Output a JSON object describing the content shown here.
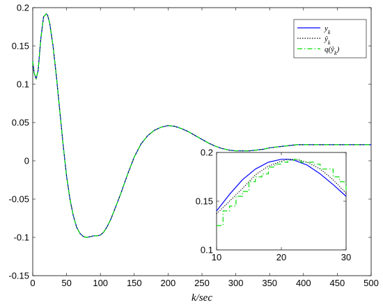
{
  "chart_data": [
    {
      "type": "line",
      "title": "",
      "xlabel": "k/sec",
      "ylabel": "",
      "xlim": [
        0,
        500
      ],
      "ylim": [
        -0.15,
        0.2
      ],
      "xticks": [
        0,
        50,
        100,
        150,
        200,
        250,
        300,
        350,
        400,
        450,
        500
      ],
      "xtick_labels": [
        "0",
        "50",
        "100",
        "150",
        "200",
        "250",
        "300",
        "350",
        "400",
        "450",
        "500"
      ],
      "yticks": [
        -0.15,
        -0.1,
        -0.05,
        0,
        0.05,
        0.1,
        0.15,
        0.2
      ],
      "ytick_labels": [
        "-0.15",
        "-0.1",
        "-0.05",
        "0",
        "0.05",
        "0.1",
        "0.15",
        "0.2"
      ],
      "grid": false,
      "legend_position": "top-right",
      "colors": {
        "y": "#0000ff",
        "y_est": "#000000",
        "q_y_est": "#00dd00"
      },
      "series": [
        {
          "name": "y_k",
          "style": "solid",
          "x": [
            0,
            2,
            5,
            8,
            12,
            16,
            20,
            22,
            25,
            30,
            35,
            40,
            45,
            50,
            55,
            60,
            65,
            70,
            75,
            80,
            85,
            90,
            95,
            100,
            105,
            110,
            115,
            120,
            130,
            140,
            150,
            160,
            170,
            180,
            190,
            200,
            210,
            220,
            230,
            240,
            250,
            260,
            270,
            280,
            290,
            300,
            310,
            320,
            330,
            340,
            350,
            360,
            370,
            380,
            390,
            400,
            420,
            440,
            460,
            480,
            500
          ],
          "y": [
            0.13,
            0.115,
            0.107,
            0.118,
            0.16,
            0.188,
            0.192,
            0.19,
            0.18,
            0.15,
            0.11,
            0.065,
            0.02,
            -0.02,
            -0.05,
            -0.072,
            -0.087,
            -0.095,
            -0.099,
            -0.1,
            -0.099,
            -0.098,
            -0.098,
            -0.097,
            -0.093,
            -0.086,
            -0.077,
            -0.066,
            -0.043,
            -0.018,
            0.005,
            0.022,
            0.033,
            0.04,
            0.044,
            0.046,
            0.045,
            0.042,
            0.038,
            0.033,
            0.028,
            0.023,
            0.019,
            0.016,
            0.014,
            0.013,
            0.013,
            0.013,
            0.014,
            0.015,
            0.017,
            0.018,
            0.019,
            0.02,
            0.021,
            0.021,
            0.021,
            0.021,
            0.021,
            0.021,
            0.021
          ]
        },
        {
          "name": "ŷ_k",
          "style": "dotted",
          "x": [
            0,
            2,
            5,
            8,
            12,
            16,
            20,
            22,
            25,
            30,
            35,
            40,
            45,
            50,
            55,
            60,
            65,
            70,
            75,
            80,
            85,
            90,
            95,
            100,
            105,
            110,
            115,
            120,
            130,
            140,
            150,
            160,
            170,
            180,
            190,
            200,
            210,
            220,
            230,
            240,
            250,
            260,
            270,
            280,
            290,
            300,
            310,
            320,
            330,
            340,
            350,
            360,
            370,
            380,
            390,
            400,
            420,
            440,
            460,
            480,
            500
          ],
          "y": [
            0.13,
            0.115,
            0.107,
            0.118,
            0.16,
            0.188,
            0.192,
            0.19,
            0.18,
            0.15,
            0.11,
            0.065,
            0.02,
            -0.02,
            -0.05,
            -0.072,
            -0.087,
            -0.095,
            -0.099,
            -0.1,
            -0.099,
            -0.098,
            -0.098,
            -0.097,
            -0.093,
            -0.086,
            -0.077,
            -0.066,
            -0.043,
            -0.018,
            0.005,
            0.022,
            0.033,
            0.04,
            0.044,
            0.046,
            0.045,
            0.042,
            0.038,
            0.033,
            0.028,
            0.023,
            0.019,
            0.016,
            0.014,
            0.013,
            0.013,
            0.013,
            0.014,
            0.015,
            0.017,
            0.018,
            0.019,
            0.02,
            0.021,
            0.021,
            0.021,
            0.021,
            0.021,
            0.021,
            0.021
          ]
        },
        {
          "name": "q(ŷ_k)",
          "style": "dash-dot",
          "x": [
            0,
            2,
            5,
            8,
            12,
            16,
            20,
            22,
            25,
            30,
            35,
            40,
            45,
            50,
            55,
            60,
            65,
            70,
            75,
            80,
            85,
            90,
            95,
            100,
            105,
            110,
            115,
            120,
            130,
            140,
            150,
            160,
            170,
            180,
            190,
            200,
            210,
            220,
            230,
            240,
            250,
            260,
            270,
            280,
            290,
            300,
            310,
            320,
            330,
            340,
            350,
            360,
            370,
            380,
            390,
            400,
            420,
            440,
            460,
            480,
            500
          ],
          "y": [
            0.13,
            0.115,
            0.107,
            0.118,
            0.16,
            0.188,
            0.192,
            0.19,
            0.18,
            0.15,
            0.11,
            0.065,
            0.02,
            -0.02,
            -0.05,
            -0.072,
            -0.087,
            -0.095,
            -0.099,
            -0.1,
            -0.099,
            -0.098,
            -0.098,
            -0.097,
            -0.093,
            -0.086,
            -0.077,
            -0.066,
            -0.043,
            -0.018,
            0.005,
            0.022,
            0.033,
            0.04,
            0.044,
            0.046,
            0.045,
            0.042,
            0.038,
            0.033,
            0.028,
            0.023,
            0.019,
            0.016,
            0.014,
            0.013,
            0.013,
            0.013,
            0.014,
            0.015,
            0.017,
            0.018,
            0.019,
            0.02,
            0.021,
            0.021,
            0.021,
            0.021,
            0.021,
            0.021,
            0.021
          ]
        }
      ]
    },
    {
      "type": "line",
      "title": "",
      "xlabel": "",
      "ylabel": "",
      "xlim": [
        10,
        30
      ],
      "ylim": [
        0.1,
        0.2
      ],
      "xticks": [
        10,
        20,
        30
      ],
      "xtick_labels": [
        "10",
        "20",
        "30"
      ],
      "yticks": [
        0.1,
        0.15,
        0.2
      ],
      "ytick_labels": [
        "0.1",
        "0.15",
        "0.2"
      ],
      "grid": false,
      "series": [
        {
          "name": "y_k",
          "style": "solid",
          "x": [
            10,
            12,
            14,
            16,
            18,
            20,
            21,
            22,
            24,
            26,
            28,
            30
          ],
          "y": [
            0.14,
            0.157,
            0.172,
            0.183,
            0.19,
            0.193,
            0.193,
            0.192,
            0.187,
            0.178,
            0.167,
            0.155
          ]
        },
        {
          "name": "ŷ_k",
          "style": "dotted",
          "x": [
            10,
            12,
            14,
            16,
            18,
            20,
            21,
            22,
            24,
            26,
            28,
            30
          ],
          "y": [
            0.137,
            0.15,
            0.163,
            0.177,
            0.186,
            0.191,
            0.193,
            0.193,
            0.19,
            0.183,
            0.172,
            0.158
          ]
        },
        {
          "name": "q(ŷ_k)",
          "style": "dash-dot",
          "step": true,
          "x": [
            10,
            11,
            12,
            13,
            14,
            15,
            16,
            17,
            18,
            19,
            20,
            21,
            22,
            23,
            24,
            25,
            26,
            27,
            28,
            29,
            30
          ],
          "y": [
            0.125,
            0.14,
            0.145,
            0.155,
            0.16,
            0.17,
            0.175,
            0.178,
            0.185,
            0.188,
            0.19,
            0.192,
            0.193,
            0.19,
            0.19,
            0.188,
            0.183,
            0.183,
            0.175,
            0.17,
            0.16
          ]
        }
      ]
    }
  ],
  "legend": {
    "entries": [
      "y_k",
      "ŷ_k",
      "q(ŷ_k)"
    ]
  }
}
